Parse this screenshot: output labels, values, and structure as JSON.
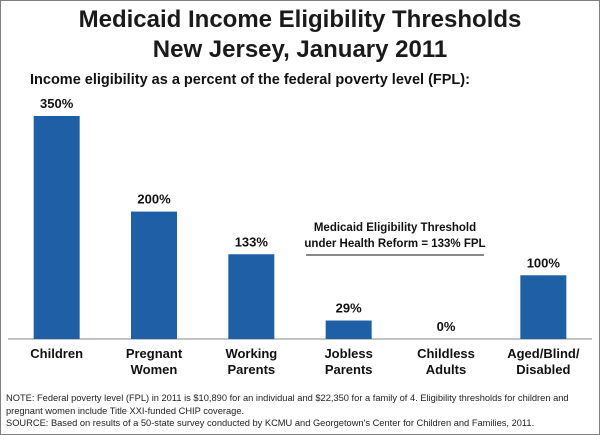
{
  "chart_data": {
    "type": "bar",
    "title": "Medicaid Income Eligibility Thresholds",
    "subtitle_line": "New Jersey, January 2011",
    "ylabel": "Income eligibility as a percent of the federal poverty level (FPL):",
    "xlabel": "",
    "ylim": [
      0,
      350
    ],
    "categories": [
      [
        "Children"
      ],
      [
        "Pregnant",
        "Women"
      ],
      [
        "Working",
        "Parents"
      ],
      [
        "Jobless",
        "Parents"
      ],
      [
        "Childless",
        "Adults"
      ],
      [
        "Aged/Blind/",
        "Disabled"
      ]
    ],
    "values": [
      350,
      200,
      133,
      29,
      0,
      100
    ],
    "value_labels": [
      "350%",
      "200%",
      "133%",
      "29%",
      "0%",
      "100%"
    ],
    "bar_color": "#1f5fa6",
    "annotation": {
      "line1": "Medicaid Eligibility Threshold",
      "line2": "under Health Reform  = 133% FPL"
    }
  },
  "footnote": {
    "note1": "NOTE: Federal poverty level (FPL) in 2011 is $10,890 for an individual and  $22,350 for a family of 4. Eligibility thresholds for children and",
    "note2": "pregnant women  include Title XXI-funded CHIP coverage.",
    "source": "SOURCE: Based on results of a 50-state survey conducted by KCMU and Georgetown's Center for Children and Families, 2011."
  }
}
